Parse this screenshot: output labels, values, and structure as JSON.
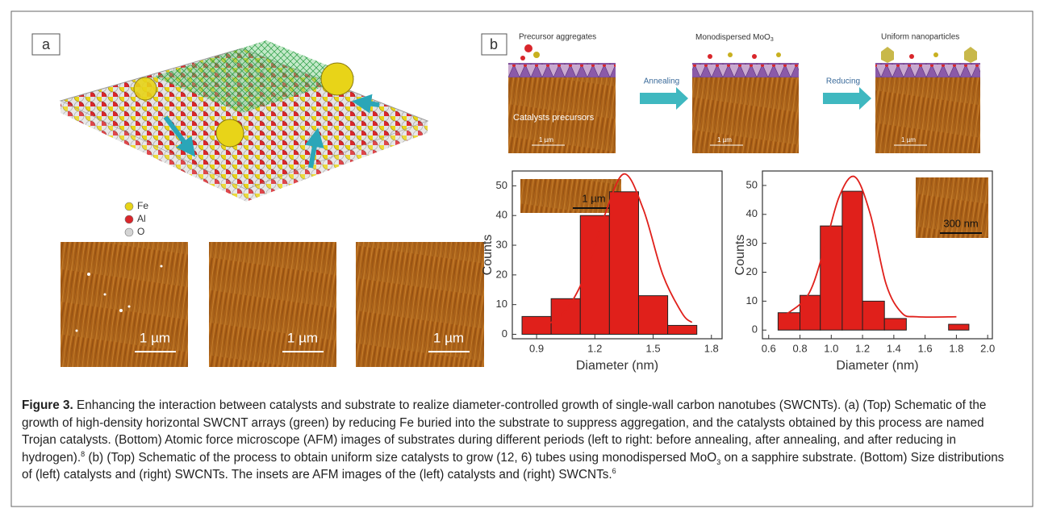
{
  "panel_a": {
    "label": "a",
    "legend": [
      {
        "name": "Fe",
        "color": "#e8d418"
      },
      {
        "name": "Al",
        "color": "#d9262b"
      },
      {
        "name": "O",
        "color": "#d4d4d4"
      }
    ],
    "afm_scale_labels": [
      "1 µm",
      "1 µm",
      "1 µm"
    ]
  },
  "panel_b": {
    "label": "b",
    "stages": [
      {
        "text": "Precursor aggregates"
      },
      {
        "text": "Monodispersed MoO",
        "subscript": "3"
      },
      {
        "text": "Uniform nanoparticles"
      }
    ],
    "arrows": [
      "Annealing",
      "Reducing"
    ],
    "annotation": "Catalysts precursors",
    "afm_scale_labels": [
      "1 µm",
      "1 µm",
      "1 µm"
    ]
  },
  "chart_data": [
    {
      "type": "histogram",
      "xlabel": "Diameter (nm)",
      "ylabel": "Counts",
      "bins": [
        0.825,
        0.975,
        1.125,
        1.275,
        1.425,
        1.575,
        1.725
      ],
      "values": [
        6,
        12,
        40,
        48,
        13,
        3
      ],
      "color": "#e0201b",
      "fit": {
        "x": [
          0.95,
          1.05,
          1.15,
          1.25,
          1.35,
          1.45,
          1.55,
          1.65,
          1.7
        ],
        "y": [
          3,
          8,
          20,
          40,
          54,
          42,
          20,
          7,
          4
        ],
        "color": "#e0201b"
      },
      "xlim": [
        0.775,
        1.855
      ],
      "ylim": [
        -1.5,
        55
      ],
      "xticks": [
        0.9,
        1.2,
        1.5,
        1.8
      ],
      "yticks": [
        0,
        10,
        20,
        30,
        40,
        50
      ],
      "inset_scale_label": "1 µm"
    },
    {
      "type": "histogram",
      "xlabel": "Diameter (nm)",
      "ylabel": "Counts",
      "bins": [
        0.66,
        0.8,
        0.93,
        1.07,
        1.2,
        1.34,
        1.48,
        1.61,
        1.75,
        1.88
      ],
      "values": [
        6,
        12,
        36,
        48,
        10,
        4,
        0,
        0,
        2
      ],
      "color": "#e0201b",
      "fit": {
        "x": [
          0.7,
          0.85,
          0.95,
          1.05,
          1.15,
          1.25,
          1.35,
          1.45,
          1.55,
          1.8
        ],
        "y": [
          5,
          12,
          27,
          46,
          53,
          40,
          16,
          6,
          4.6,
          4.6
        ],
        "color": "#e0201b"
      },
      "xlim": [
        0.56,
        2.03
      ],
      "ylim": [
        -3,
        55
      ],
      "xticks": [
        0.6,
        0.8,
        {
          "value": 1,
          "label": "1.0"
        },
        1.2,
        1.4,
        1.6,
        1.8,
        {
          "value": 2,
          "label": "2.0"
        }
      ],
      "yticks": [
        0,
        10,
        20,
        30,
        40,
        50
      ],
      "inset_scale_label": "300 nm"
    }
  ],
  "caption": {
    "label": "Figure 3.",
    "text_1": "Enhancing the interaction between catalysts and substrate to realize diameter-controlled growth of single-wall carbon nanotubes (SWCNTs). (a) (Top) Schematic of the growth of high-density horizontal SWCNT arrays (green) by reducing Fe buried into the substrate to suppress aggregation, and the catalysts obtained by this process are named Trojan catalysts. (Bottom) Atomic force microscope (AFM) images of substrates during different periods (left to right: before annealing, after annealing, and after reducing in hydrogen).",
    "ref_1": "8",
    "text_2": "(b) (Top) Schematic of the process to obtain uniform size catalysts to grow (12, 6) tubes using monodispersed MoO",
    "sub_1": "3",
    "text_3": "on a sapphire substrate. (Bottom) Size distributions of (left) catalysts and (right) SWCNTs. The insets are AFM images of the (left) catalysts and (right) SWCNTs.",
    "ref_2": "6"
  }
}
